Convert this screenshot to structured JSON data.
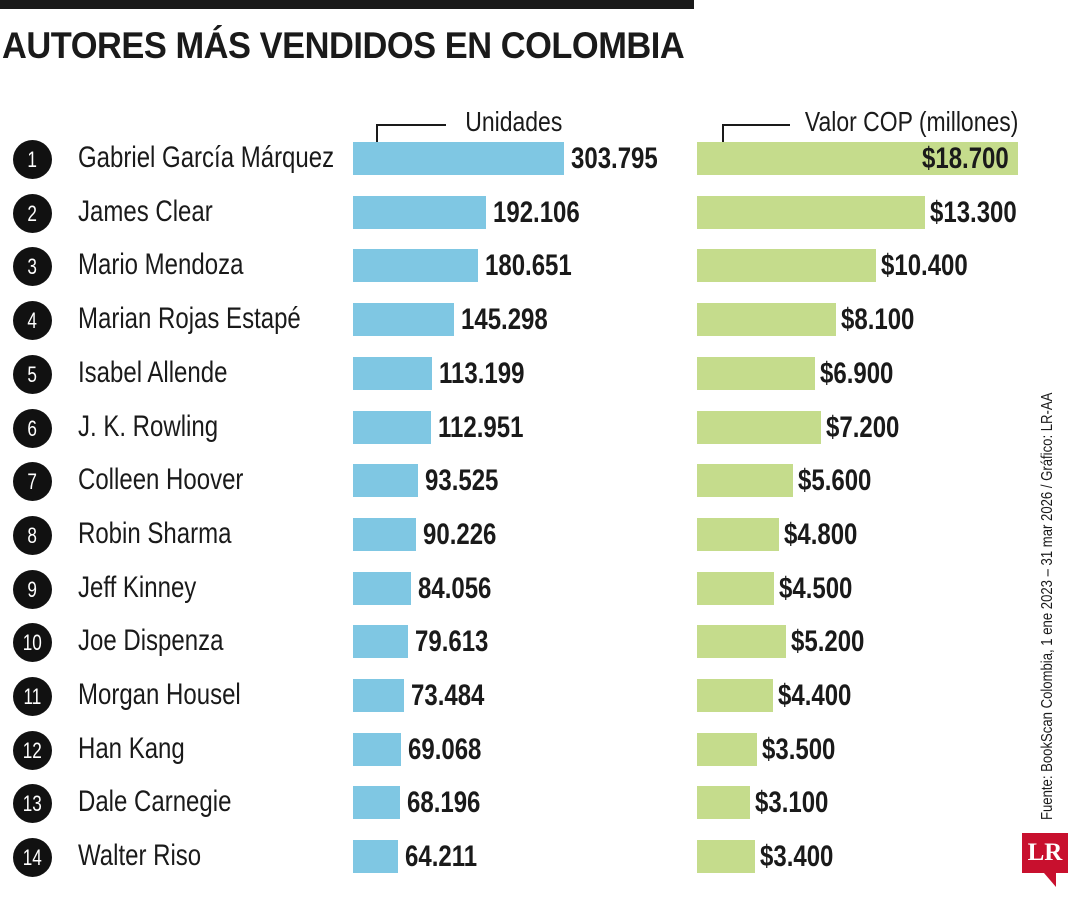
{
  "title": "AUTORES MÁS VENDIDOS EN COLOMBIA",
  "columns": {
    "units": "Unidades",
    "value": "Valor COP (millones)"
  },
  "source": "Fuente: BookScan Colombia, 1 ene 2023 – 31 mar 2026 / Gráfico: LR-AA",
  "logo": "LR",
  "colors": {
    "units_bar": "#7fc7e3",
    "value_bar": "#c5dc8c",
    "logo": "#c8102e"
  },
  "chart_data": {
    "type": "bar",
    "title": "AUTORES MÁS VENDIDOS EN COLOMBIA",
    "categories": [
      "Gabriel García Márquez",
      "James Clear",
      "Mario Mendoza",
      "Marian Rojas Estapé",
      "Isabel Allende",
      "J. K. Rowling",
      "Colleen Hoover",
      "Robin Sharma",
      "Jeff Kinney",
      "Joe Dispenza",
      "Morgan Housel",
      "Han Kang",
      "Dale Carnegie",
      "Walter Riso"
    ],
    "series": [
      {
        "name": "Unidades",
        "values": [
          303795,
          192106,
          180651,
          145298,
          113199,
          112951,
          93525,
          90226,
          84056,
          79613,
          73484,
          69068,
          68196,
          64211
        ]
      },
      {
        "name": "Valor COP (millones)",
        "values": [
          18700,
          13300,
          10400,
          8100,
          6900,
          7200,
          5600,
          4800,
          4500,
          5200,
          4400,
          3500,
          3100,
          3400
        ]
      }
    ],
    "rows": [
      {
        "rank": "1",
        "name": "Gabriel García Márquez",
        "units": 303795,
        "units_label": "303.795",
        "value": 18700,
        "value_label": "$18.700"
      },
      {
        "rank": "2",
        "name": "James Clear",
        "units": 192106,
        "units_label": "192.106",
        "value": 13300,
        "value_label": "$13.300"
      },
      {
        "rank": "3",
        "name": "Mario Mendoza",
        "units": 180651,
        "units_label": "180.651",
        "value": 10400,
        "value_label": "$10.400"
      },
      {
        "rank": "4",
        "name": "Marian Rojas Estapé",
        "units": 145298,
        "units_label": "145.298",
        "value": 8100,
        "value_label": "$8.100"
      },
      {
        "rank": "5",
        "name": "Isabel Allende",
        "units": 113199,
        "units_label": "113.199",
        "value": 6900,
        "value_label": "$6.900"
      },
      {
        "rank": "6",
        "name": "J. K. Rowling",
        "units": 112951,
        "units_label": "112.951",
        "value": 7200,
        "value_label": "$7.200"
      },
      {
        "rank": "7",
        "name": "Colleen Hoover",
        "units": 93525,
        "units_label": "93.525",
        "value": 5600,
        "value_label": "$5.600"
      },
      {
        "rank": "8",
        "name": "Robin Sharma",
        "units": 90226,
        "units_label": "90.226",
        "value": 4800,
        "value_label": "$4.800"
      },
      {
        "rank": "9",
        "name": "Jeff Kinney",
        "units": 84056,
        "units_label": "84.056",
        "value": 4500,
        "value_label": "$4.500"
      },
      {
        "rank": "10",
        "name": "Joe Dispenza",
        "units": 79613,
        "units_label": "79.613",
        "value": 5200,
        "value_label": "$5.200"
      },
      {
        "rank": "11",
        "name": "Morgan Housel",
        "units": 73484,
        "units_label": "73.484",
        "value": 4400,
        "value_label": "$4.400"
      },
      {
        "rank": "12",
        "name": "Han Kang",
        "units": 69068,
        "units_label": "69.068",
        "value": 3500,
        "value_label": "$3.500"
      },
      {
        "rank": "13",
        "name": "Dale Carnegie",
        "units": 68196,
        "units_label": "68.196",
        "value": 3100,
        "value_label": "$3.100"
      },
      {
        "rank": "14",
        "name": "Walter Riso",
        "units": 64211,
        "units_label": "64.211",
        "value": 3400,
        "value_label": "$3.400"
      }
    ]
  }
}
